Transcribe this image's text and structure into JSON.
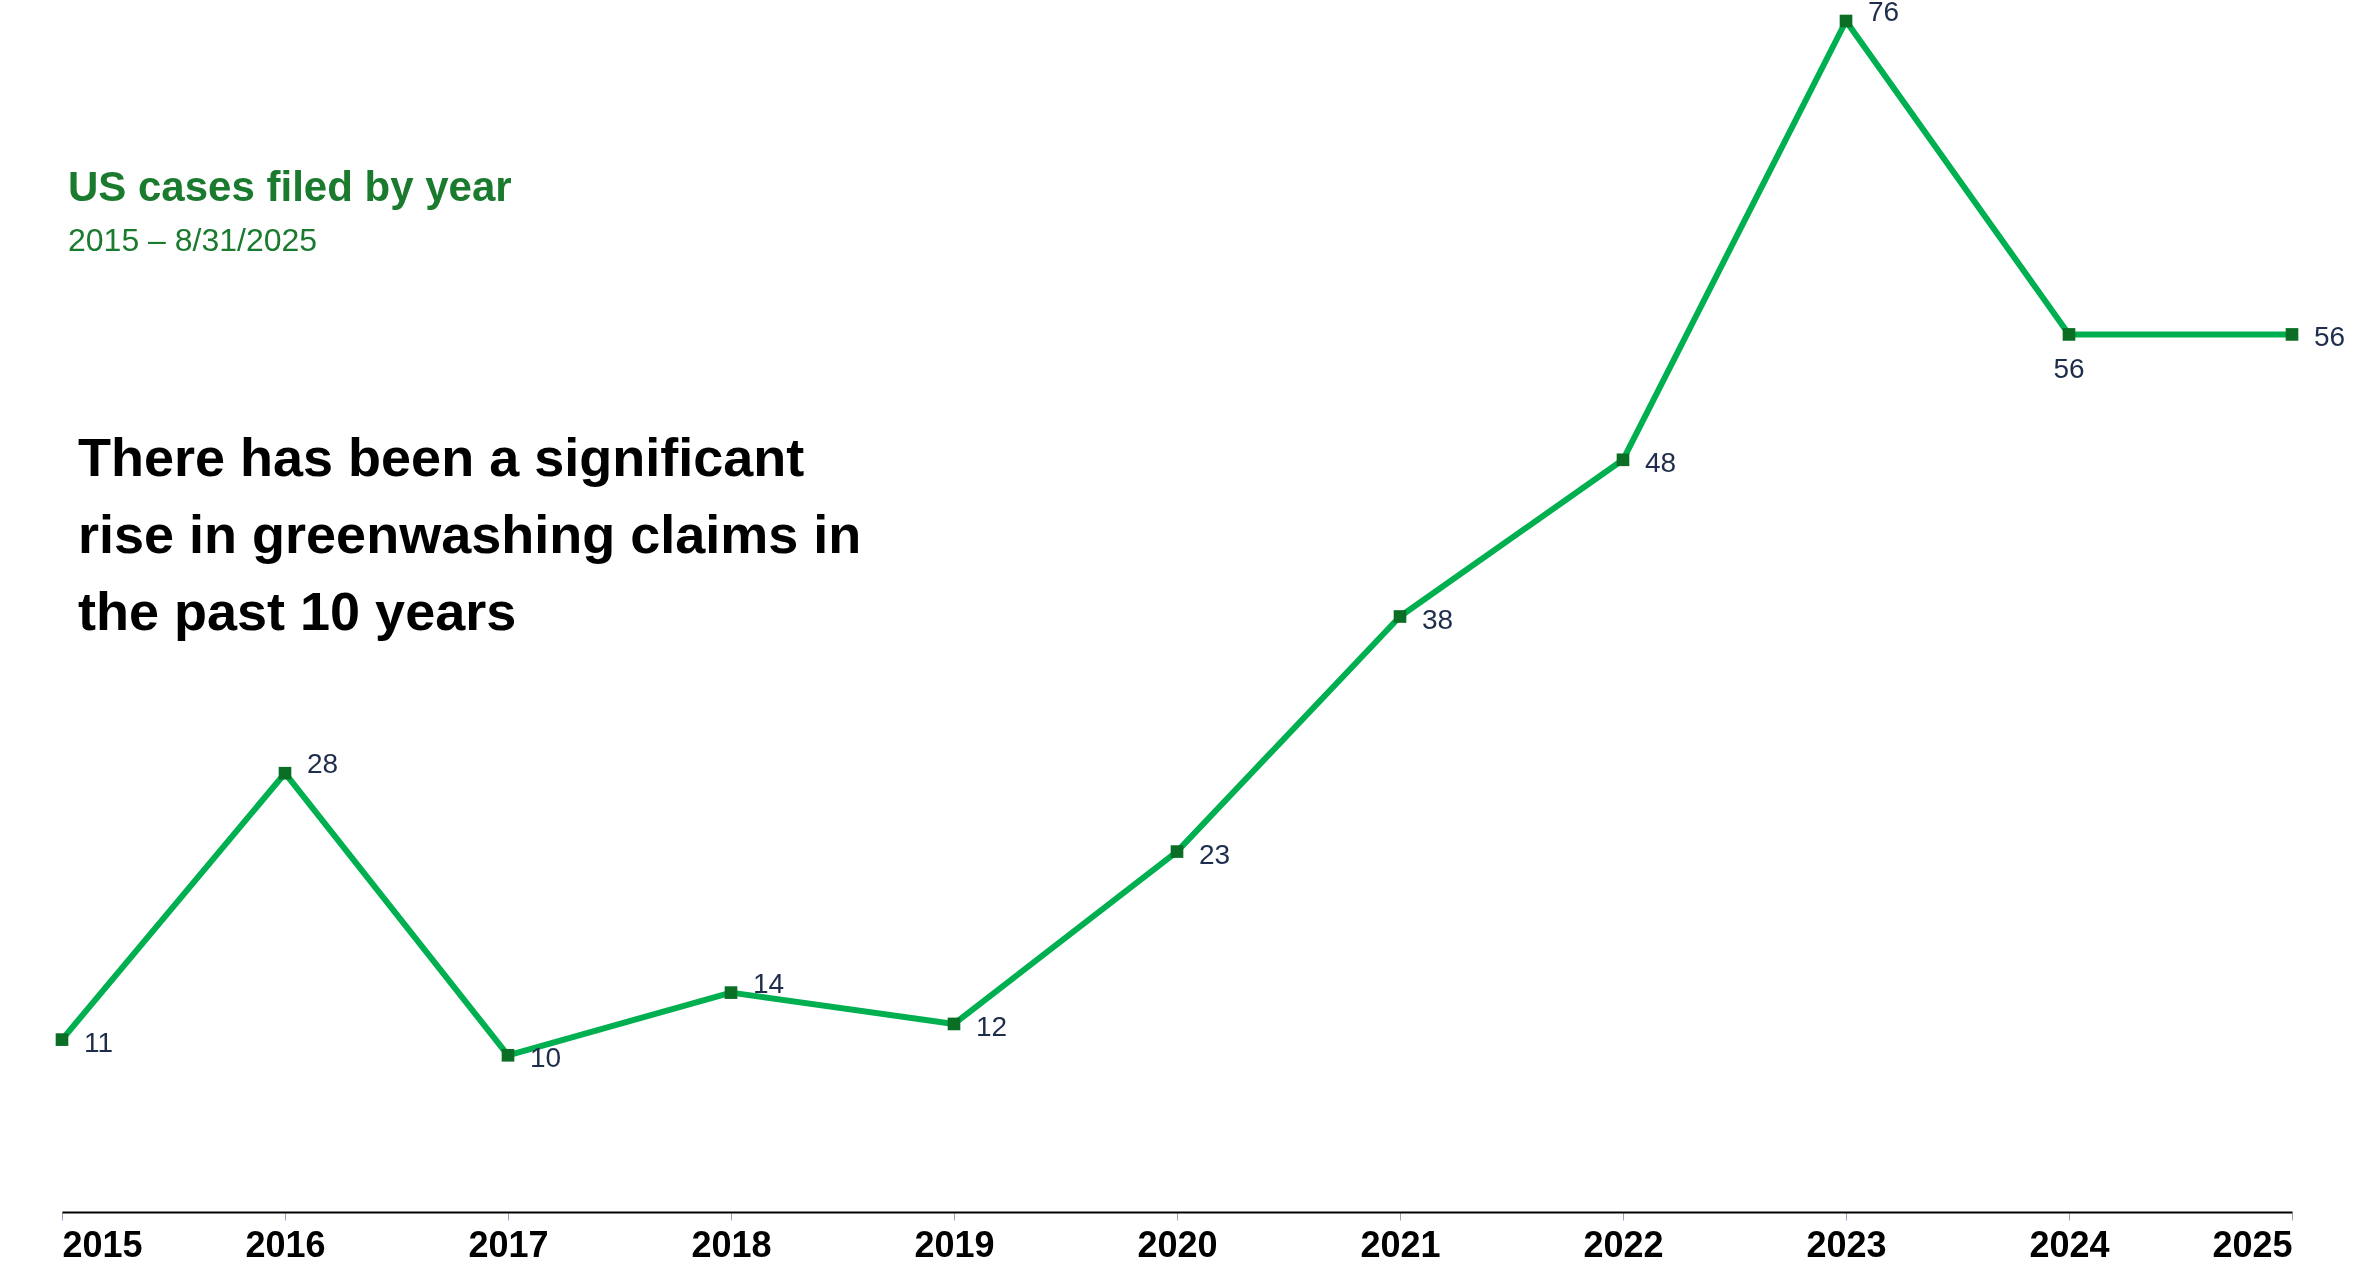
{
  "chart_data": {
    "type": "line",
    "title": "US cases filed by year",
    "subtitle": "2015 – 8/31/2025",
    "annotations": [
      "There has been a significant rise in greenwashing claims in the past 10 years"
    ],
    "categories": [
      "2015",
      "2016",
      "2017",
      "2018",
      "2019",
      "2020",
      "2021",
      "2022",
      "2023",
      "2024",
      "2025"
    ],
    "series": [
      {
        "color": "#00b050",
        "values": [
          11,
          28,
          10,
          14,
          12,
          23,
          38,
          48,
          76,
          56,
          56
        ]
      }
    ],
    "data_labels": true,
    "marker": "square",
    "grid": false,
    "tick_labels": "x"
  }
}
